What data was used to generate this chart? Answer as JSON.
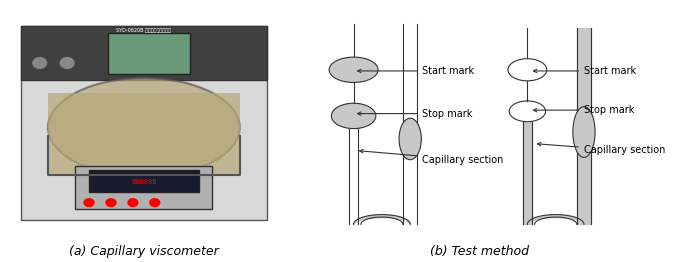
{
  "fig_width": 6.85,
  "fig_height": 2.62,
  "bg_color": "#ffffff",
  "caption_a": "(a) Capillary viscometer",
  "caption_b": "(b) Test method",
  "gray_fill": "#c8c8c8",
  "tube_color": "#333333",
  "tube_fill": "#ffffff",
  "arrow_color": "#333333",
  "label_fontsize": 7,
  "caption_fontsize": 9,
  "labels": {
    "start_mark": "Start mark",
    "stop_mark": "Stop mark",
    "capillary": "Capillary section"
  }
}
